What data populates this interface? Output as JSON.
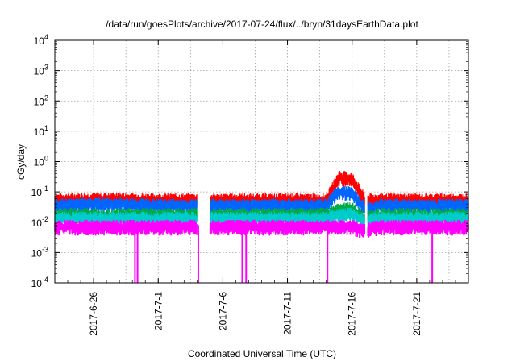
{
  "chart_data": {
    "type": "line",
    "title": "/data/run/goesPlots/archive/2017-07-24/flux/../bryn/31daysEarthData.plot",
    "xlabel": "Coordinated Universal Time (UTC)",
    "ylabel": "cGy/day",
    "yscale": "log",
    "ylim": [
      0.0001,
      10000
    ],
    "xlim": [
      "2017-06-23",
      "2017-07-25"
    ],
    "grid": true,
    "y_ticks": [
      {
        "value": 0.0001,
        "base": "10",
        "exp": "-4"
      },
      {
        "value": 0.001,
        "base": "10",
        "exp": "-3"
      },
      {
        "value": 0.01,
        "base": "10",
        "exp": "-2"
      },
      {
        "value": 0.1,
        "base": "10",
        "exp": "-1"
      },
      {
        "value": 1,
        "base": "10",
        "exp": "0"
      },
      {
        "value": 10,
        "base": "10",
        "exp": "1"
      },
      {
        "value": 100,
        "base": "10",
        "exp": "2"
      },
      {
        "value": 1000,
        "base": "10",
        "exp": "3"
      },
      {
        "value": 10000,
        "base": "10",
        "exp": "4"
      }
    ],
    "x_ticks": [
      "2017-6-26",
      "2017-7-1",
      "2017-7-6",
      "2017-7-11",
      "2017-7-16",
      "2017-7-21"
    ],
    "data_gaps": [
      [
        "2017-07-04",
        "2017-07-05"
      ],
      [
        "2017-07-17",
        "2017-07-17.2"
      ]
    ],
    "series": [
      {
        "color": "#ff0000",
        "x": [
          "2017-06-23",
          "2017-06-27",
          "2017-07-01",
          "2017-07-04",
          "2017-07-05",
          "2017-07-09",
          "2017-07-13",
          "2017-07-14",
          "2017-07-15",
          "2017-07-16",
          "2017-07-17",
          "2017-07-18",
          "2017-07-21",
          "2017-07-25"
        ],
        "values": [
          0.06,
          0.065,
          0.06,
          0.06,
          0.06,
          0.06,
          0.06,
          0.06,
          0.35,
          0.3,
          0.06,
          0.06,
          0.06,
          0.06
        ]
      },
      {
        "color": "#0066ff",
        "x": [
          "2017-06-23",
          "2017-06-27",
          "2017-07-01",
          "2017-07-04",
          "2017-07-05",
          "2017-07-09",
          "2017-07-13",
          "2017-07-14",
          "2017-07-15",
          "2017-07-16",
          "2017-07-17",
          "2017-07-18",
          "2017-07-21",
          "2017-07-25"
        ],
        "values": [
          0.04,
          0.045,
          0.04,
          0.04,
          0.04,
          0.04,
          0.04,
          0.04,
          0.12,
          0.1,
          0.03,
          0.04,
          0.04,
          0.04
        ]
      },
      {
        "color": "#00aa44",
        "x": [
          "2017-06-23",
          "2017-06-27",
          "2017-07-01",
          "2017-07-04",
          "2017-07-05",
          "2017-07-09",
          "2017-07-13",
          "2017-07-14",
          "2017-07-15",
          "2017-07-16",
          "2017-07-17",
          "2017-07-18",
          "2017-07-21",
          "2017-07-25"
        ],
        "values": [
          0.02,
          0.02,
          0.02,
          0.02,
          0.02,
          0.02,
          0.02,
          0.02,
          0.03,
          0.03,
          0.015,
          0.02,
          0.02,
          0.02
        ]
      },
      {
        "color": "#00cccc",
        "x": [
          "2017-06-23",
          "2017-06-27",
          "2017-07-01",
          "2017-07-04",
          "2017-07-05",
          "2017-07-09",
          "2017-07-13",
          "2017-07-14",
          "2017-07-15",
          "2017-07-16",
          "2017-07-17",
          "2017-07-18",
          "2017-07-21",
          "2017-07-25"
        ],
        "values": [
          0.015,
          0.015,
          0.015,
          0.015,
          0.015,
          0.015,
          0.015,
          0.015,
          0.02,
          0.02,
          0.012,
          0.015,
          0.015,
          0.015
        ]
      },
      {
        "color": "#ff00ff",
        "x": [
          "2017-06-23",
          "2017-06-27",
          "2017-07-01",
          "2017-07-04",
          "2017-07-05",
          "2017-07-09",
          "2017-07-13",
          "2017-07-14",
          "2017-07-15",
          "2017-07-16",
          "2017-07-17",
          "2017-07-18",
          "2017-07-21",
          "2017-07-25"
        ],
        "values": [
          0.008,
          0.008,
          0.008,
          0.008,
          0.008,
          0.008,
          0.008,
          0.008,
          0.008,
          0.008,
          0.006,
          0.008,
          0.008,
          0.008
        ],
        "dropouts": [
          "2017-06-29.2",
          "2017-06-29.4",
          "2017-07-04.1",
          "2017-07-07.5",
          "2017-07-07.8",
          "2017-07-14.1",
          "2017-07-22.2"
        ]
      }
    ]
  }
}
